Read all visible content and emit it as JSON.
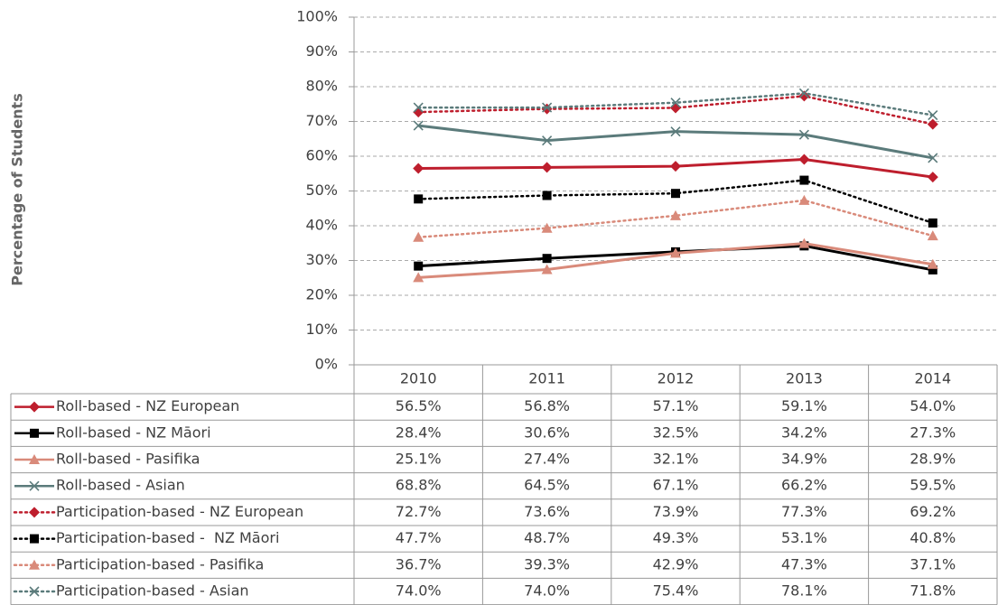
{
  "chart_data": {
    "type": "line",
    "y_label": "Percentage of Students",
    "categories": [
      "2010",
      "2011",
      "2012",
      "2013",
      "2014"
    ],
    "ylim": [
      0,
      100
    ],
    "yticks": [
      {
        "value": 0,
        "label": "0%"
      },
      {
        "value": 10,
        "label": "10%"
      },
      {
        "value": 20,
        "label": "20%"
      },
      {
        "value": 30,
        "label": "30%"
      },
      {
        "value": 40,
        "label": "40%"
      },
      {
        "value": 50,
        "label": "50%"
      },
      {
        "value": 60,
        "label": "60%"
      },
      {
        "value": 70,
        "label": "70%"
      },
      {
        "value": 80,
        "label": "80%"
      },
      {
        "value": 90,
        "label": "90%"
      },
      {
        "value": 100,
        "label": "100%"
      }
    ],
    "grid": true,
    "series": [
      {
        "name": "Roll-based - NZ European",
        "color": "#be1e2d",
        "dash": "solid",
        "marker": "diamond",
        "values": [
          56.5,
          56.8,
          57.1,
          59.1,
          54.0
        ],
        "value_labels": [
          "56.5%",
          "56.8%",
          "57.1%",
          "59.1%",
          "54.0%"
        ]
      },
      {
        "name": "Roll-based - NZ Māori",
        "color": "#000000",
        "dash": "solid",
        "marker": "square",
        "values": [
          28.4,
          30.6,
          32.5,
          34.2,
          27.3
        ],
        "value_labels": [
          "28.4%",
          "30.6%",
          "32.5%",
          "34.2%",
          "27.3%"
        ]
      },
      {
        "name": "Roll-based - Pasifika",
        "color": "#d98a7a",
        "dash": "solid",
        "marker": "triangle",
        "values": [
          25.1,
          27.4,
          32.1,
          34.9,
          28.9
        ],
        "value_labels": [
          "25.1%",
          "27.4%",
          "32.1%",
          "34.9%",
          "28.9%"
        ]
      },
      {
        "name": "Roll-based - Asian",
        "color": "#5b7b7b",
        "dash": "solid",
        "marker": "x",
        "values": [
          68.8,
          64.5,
          67.1,
          66.2,
          59.5
        ],
        "value_labels": [
          "68.8%",
          "64.5%",
          "67.1%",
          "66.2%",
          "59.5%"
        ]
      },
      {
        "name": "Participation-based - NZ European",
        "color": "#be1e2d",
        "dash": "dotted",
        "marker": "diamond",
        "values": [
          72.7,
          73.6,
          73.9,
          77.3,
          69.2
        ],
        "value_labels": [
          "72.7%",
          "73.6%",
          "73.9%",
          "77.3%",
          "69.2%"
        ]
      },
      {
        "name": "Participation-based -  NZ Māori",
        "color": "#000000",
        "dash": "dotted",
        "marker": "square",
        "values": [
          47.7,
          48.7,
          49.3,
          53.1,
          40.8
        ],
        "value_labels": [
          "47.7%",
          "48.7%",
          "49.3%",
          "53.1%",
          "40.8%"
        ]
      },
      {
        "name": "Participation-based - Pasifika",
        "color": "#d98a7a",
        "dash": "dotted",
        "marker": "triangle",
        "values": [
          36.7,
          39.3,
          42.9,
          47.3,
          37.1
        ],
        "value_labels": [
          "36.7%",
          "39.3%",
          "42.9%",
          "47.3%",
          "37.1%"
        ]
      },
      {
        "name": "Participation-based - Asian",
        "color": "#5b7b7b",
        "dash": "dotted",
        "marker": "x",
        "values": [
          74.0,
          74.0,
          75.4,
          78.1,
          71.8
        ],
        "value_labels": [
          "74.0%",
          "74.0%",
          "75.4%",
          "78.1%",
          "71.8%"
        ]
      }
    ]
  }
}
